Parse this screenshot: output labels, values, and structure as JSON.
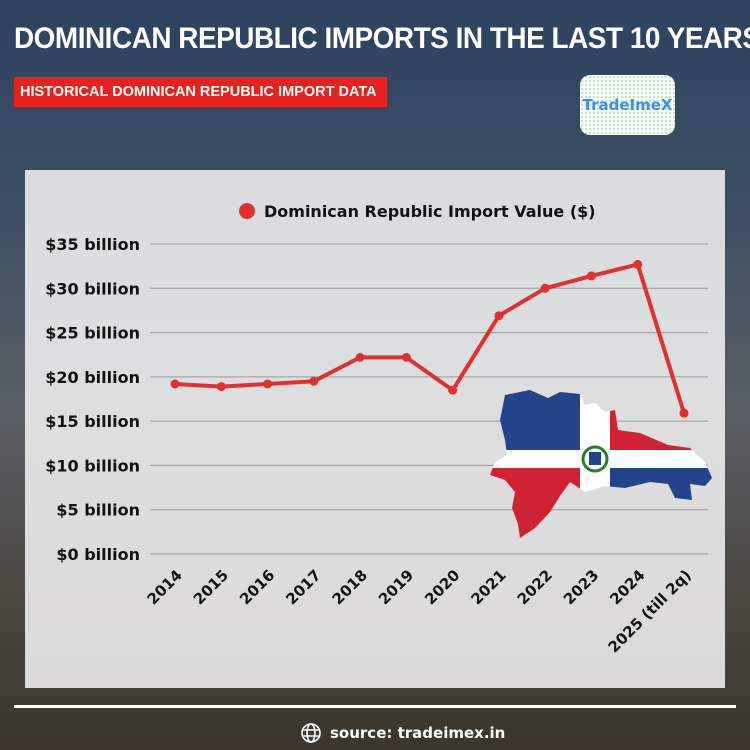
{
  "header": {
    "title": "DOMINICAN REPUBLIC IMPORTS IN THE LAST 10 YEARS",
    "subtitle": "HISTORICAL DOMINICAN REPUBLIC IMPORT DATA",
    "logo_text": "TradeImeX"
  },
  "footer": {
    "source": "source: tradeimex.in",
    "icon": "globe-icon"
  },
  "chart_data": {
    "type": "line",
    "categories": [
      "2014",
      "2015",
      "2016",
      "2017",
      "2018",
      "2019",
      "2020",
      "2021",
      "2022",
      "2023",
      "2024",
      "2025 (till 2q)"
    ],
    "series": [
      {
        "name": "Dominican Republic Import Value ($)",
        "color": "#e03131",
        "values": [
          19.2,
          18.9,
          19.2,
          19.5,
          22.2,
          22.2,
          18.5,
          26.9,
          30.0,
          31.4,
          32.7,
          15.9
        ]
      }
    ],
    "ylim": [
      0,
      35
    ],
    "yticks": [
      0,
      5,
      10,
      15,
      20,
      25,
      30,
      35
    ],
    "ytick_labels": [
      "$0 billion",
      "$5 billion",
      "$10 billion",
      "$15 billion",
      "$20 billion",
      "$25 billion",
      "$30 billion",
      "$35 billion"
    ],
    "grid": true,
    "legend": "top-center"
  }
}
